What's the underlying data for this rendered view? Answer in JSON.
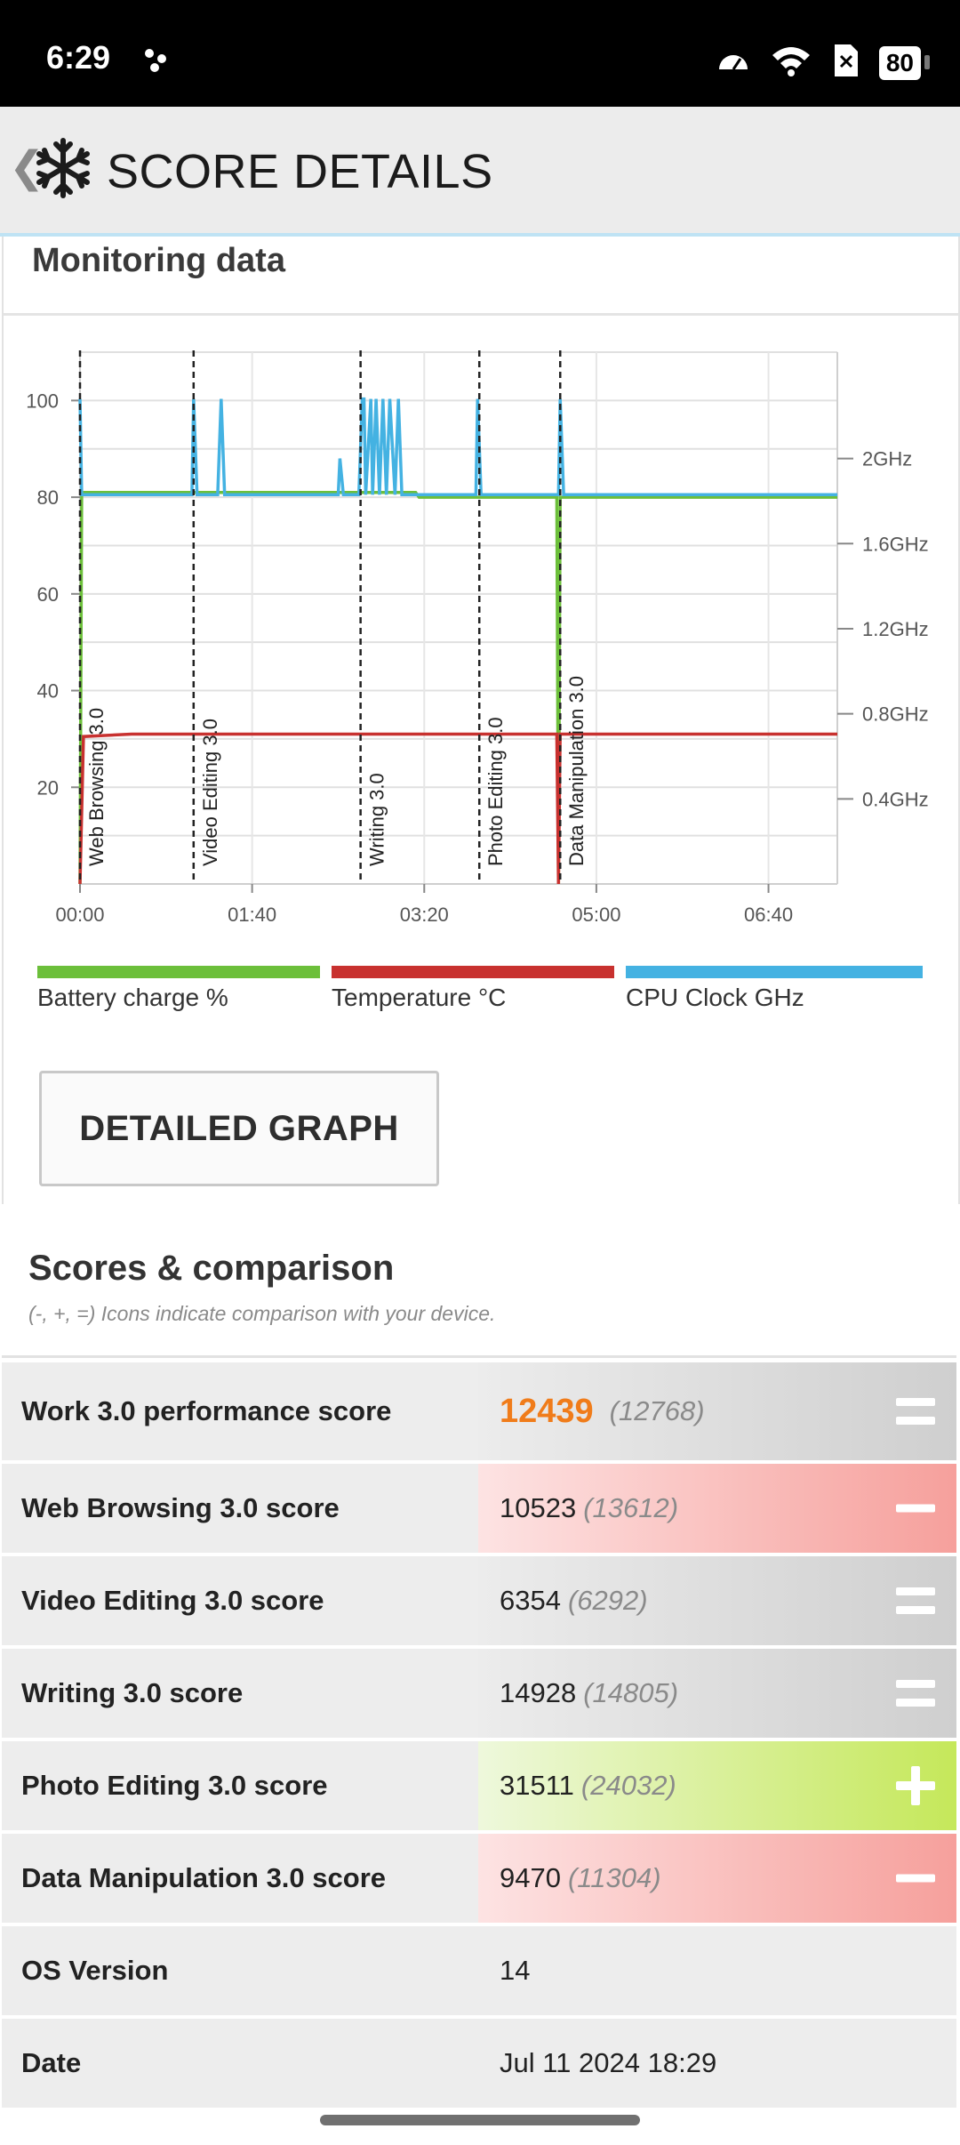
{
  "status_bar": {
    "time": "6:29",
    "battery": "80"
  },
  "header": {
    "title": "SCORE DETAILS"
  },
  "monitoring": {
    "title": "Monitoring data"
  },
  "chart_data": {
    "type": "line",
    "x_unit": "time (mm:ss)",
    "x_ticks": [
      "00:00",
      "01:40",
      "03:20",
      "05:00",
      "06:40"
    ],
    "x_tick_values": [
      0,
      100,
      200,
      300,
      400
    ],
    "xlim": [
      0,
      440
    ],
    "y_left_ticks": [
      "100",
      "80",
      "60",
      "40",
      "20"
    ],
    "y_left_tick_values": [
      100,
      80,
      60,
      40,
      20
    ],
    "ylim": [
      0,
      110
    ],
    "y_right_ticks": [
      "2GHz",
      "1.6GHz",
      "1.2GHz",
      "0.8GHz",
      "0.4GHz"
    ],
    "y_right_tick_values": [
      2.0,
      1.6,
      1.2,
      0.8,
      0.4
    ],
    "y_right_lim": [
      0,
      2.5
    ],
    "grid": true,
    "markers": [
      {
        "label": "Web Browsing 3.0",
        "x": 0
      },
      {
        "label": "Video Editing 3.0",
        "x": 66
      },
      {
        "label": "Writing 3.0",
        "x": 163
      },
      {
        "label": "Photo Editing 3.0",
        "x": 232
      },
      {
        "label": "Data Manipulation 3.0",
        "x": 279
      }
    ],
    "series": [
      {
        "name": "Battery charge %",
        "color": "#6cbf3a",
        "axis": "left",
        "x": [
          0,
          1,
          195,
          197,
          277,
          278,
          279,
          440
        ],
        "y": [
          0,
          81,
          81,
          80,
          80,
          0,
          80,
          80
        ]
      },
      {
        "name": "Temperature °C",
        "color": "#c8312f",
        "axis": "left",
        "x": [
          0,
          2,
          30,
          440,
          277,
          278,
          279
        ],
        "y": [
          0,
          30.5,
          31,
          31,
          31,
          0,
          31
        ]
      },
      {
        "name": "CPU Clock GHz",
        "color": "#44b2e2",
        "axis": "right",
        "x": [
          0,
          1,
          3,
          65,
          66,
          68,
          80,
          82,
          84,
          150,
          151,
          153,
          162,
          164,
          165,
          166,
          169,
          170,
          172,
          174,
          176,
          178,
          180,
          183,
          185,
          187,
          230,
          231,
          233,
          278,
          279,
          281,
          440
        ],
        "y": [
          2.28,
          1.83,
          1.83,
          1.83,
          2.28,
          1.83,
          1.83,
          2.28,
          1.83,
          1.83,
          2.0,
          1.83,
          1.83,
          2.28,
          2.28,
          1.83,
          2.28,
          1.83,
          2.28,
          1.83,
          2.28,
          1.83,
          2.28,
          1.83,
          2.28,
          1.83,
          1.83,
          2.28,
          1.83,
          1.83,
          2.28,
          1.83,
          1.83
        ]
      }
    ]
  },
  "legend": [
    {
      "label": "Battery charge %",
      "color": "#6cbf3a"
    },
    {
      "label": "Temperature °C",
      "color": "#c8312f"
    },
    {
      "label": "CPU Clock GHz",
      "color": "#44b2e2"
    }
  ],
  "detailed_graph_button": "DETAILED GRAPH",
  "scores": {
    "title": "Scores & comparison",
    "subtitle": "(-, +, =) Icons indicate comparison with your device.",
    "rows": [
      {
        "label": "Work 3.0 performance score",
        "value": "12439",
        "reference": "(12768)",
        "comparison": "equal"
      },
      {
        "label": "Web Browsing 3.0 score",
        "value": "10523",
        "reference": "(13612)",
        "comparison": "minus"
      },
      {
        "label": "Video Editing 3.0 score",
        "value": "6354",
        "reference": "(6292)",
        "comparison": "equal"
      },
      {
        "label": "Writing 3.0 score",
        "value": "14928",
        "reference": "(14805)",
        "comparison": "equal"
      },
      {
        "label": "Photo Editing 3.0 score",
        "value": "31511",
        "reference": "(24032)",
        "comparison": "plus"
      },
      {
        "label": "Data Manipulation 3.0 score",
        "value": "9470",
        "reference": "(11304)",
        "comparison": "minus"
      },
      {
        "label": "OS Version",
        "value": "14"
      },
      {
        "label": "Date",
        "value": "Jul 11 2024 18:29"
      }
    ]
  },
  "colors": {
    "accent_orange": "#f07c1a",
    "header_bg": "#ececec"
  }
}
